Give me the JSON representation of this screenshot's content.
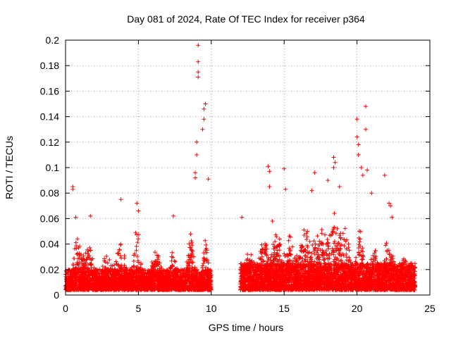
{
  "chart_data": {
    "type": "scatter",
    "title": "Day 081 of 2024, Rate Of TEC Index for receiver p364",
    "xlabel": "GPS time / hours",
    "ylabel": "ROTI / TECUs",
    "xlim": [
      0,
      25
    ],
    "ylim": [
      0,
      0.2
    ],
    "xticks": [
      0,
      5,
      10,
      15,
      20,
      25
    ],
    "yticks": [
      0,
      0.02,
      0.04,
      0.06,
      0.08,
      0.1,
      0.12,
      0.14,
      0.16,
      0.18,
      0.2
    ],
    "xtick_labels": [
      "0",
      "5",
      "10",
      "15",
      "20",
      "25"
    ],
    "ytick_labels": [
      "0",
      "0.02",
      "0.04",
      "0.06",
      "0.08",
      "0.1",
      "0.12",
      "0.14",
      "0.16",
      "0.18",
      "0.2"
    ],
    "grid": true,
    "marker": "+",
    "marker_color": "#ff0000",
    "series": [
      {
        "name": "ROTI",
        "segments": [
          {
            "x_start": 0.0,
            "x_end": 10.0,
            "baseline_range": [
              0.004,
              0.02
            ]
          },
          {
            "x_start": 12.0,
            "x_end": 24.0,
            "baseline_range": [
              0.004,
              0.025
            ]
          }
        ],
        "notable_points": [
          [
            0.5,
            0.083
          ],
          [
            0.5,
            0.085
          ],
          [
            0.7,
            0.061
          ],
          [
            1.7,
            0.062
          ],
          [
            3.8,
            0.075
          ],
          [
            4.9,
            0.072
          ],
          [
            5.0,
            0.066
          ],
          [
            7.4,
            0.062
          ],
          [
            8.9,
            0.092
          ],
          [
            8.9,
            0.096
          ],
          [
            9.0,
            0.11
          ],
          [
            9.0,
            0.12
          ],
          [
            9.1,
            0.171
          ],
          [
            9.1,
            0.175
          ],
          [
            9.1,
            0.183
          ],
          [
            9.1,
            0.196
          ],
          [
            9.4,
            0.13
          ],
          [
            9.5,
            0.138
          ],
          [
            9.5,
            0.146
          ],
          [
            9.6,
            0.15
          ],
          [
            9.8,
            0.091
          ],
          [
            12.1,
            0.061
          ],
          [
            13.9,
            0.101
          ],
          [
            14.0,
            0.097
          ],
          [
            14.0,
            0.085
          ],
          [
            14.2,
            0.058
          ],
          [
            15.0,
            0.099
          ],
          [
            15.1,
            0.083
          ],
          [
            16.9,
            0.082
          ],
          [
            17.1,
            0.096
          ],
          [
            18.0,
            0.09
          ],
          [
            18.4,
            0.108
          ],
          [
            18.4,
            0.1
          ],
          [
            18.5,
            0.104
          ],
          [
            18.8,
            0.085
          ],
          [
            20.0,
            0.138
          ],
          [
            20.0,
            0.124
          ],
          [
            20.1,
            0.118
          ],
          [
            20.1,
            0.11
          ],
          [
            20.3,
            0.1
          ],
          [
            20.4,
            0.094
          ],
          [
            20.6,
            0.148
          ],
          [
            20.6,
            0.13
          ],
          [
            20.7,
            0.098
          ],
          [
            21.0,
            0.08
          ],
          [
            21.9,
            0.094
          ],
          [
            22.2,
            0.072
          ],
          [
            22.3,
            0.07
          ],
          [
            22.4,
            0.061
          ]
        ]
      }
    ]
  }
}
